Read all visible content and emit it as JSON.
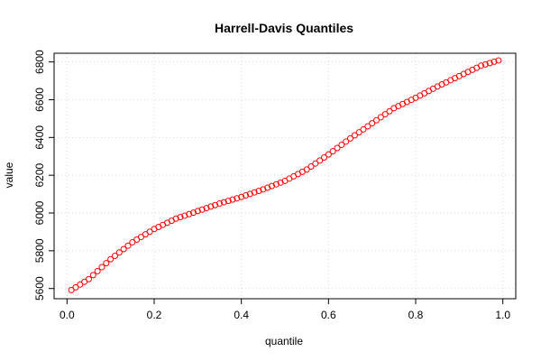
{
  "chart_data": {
    "type": "scatter",
    "title": "Harrell-Davis Quantiles",
    "xlabel": "quantile",
    "ylabel": "value",
    "xlim": [
      -0.0296,
      1.0296
    ],
    "ylim": [
      5546,
      6846
    ],
    "xticks": [
      0.0,
      0.2,
      0.4,
      0.6,
      0.8,
      1.0
    ],
    "xtick_labels": [
      "0.0",
      "0.2",
      "0.4",
      "0.6",
      "0.8",
      "1.0"
    ],
    "yticks": [
      5600,
      5800,
      6000,
      6200,
      6400,
      6600,
      6800
    ],
    "ytick_labels": [
      "5600",
      "5800",
      "6000",
      "6200",
      "6400",
      "6600",
      "6800"
    ],
    "grid": true,
    "point_color": "#ff0000",
    "anchors": {
      "x": [
        0.01,
        0.05,
        0.1,
        0.15,
        0.2,
        0.25,
        0.3,
        0.35,
        0.4,
        0.45,
        0.5,
        0.55,
        0.6,
        0.65,
        0.7,
        0.75,
        0.8,
        0.85,
        0.9,
        0.95,
        0.99
      ],
      "y": [
        5592,
        5650,
        5755,
        5845,
        5915,
        5970,
        6010,
        6050,
        6085,
        6125,
        6170,
        6230,
        6310,
        6395,
        6475,
        6555,
        6610,
        6670,
        6725,
        6780,
        6808
      ]
    }
  }
}
